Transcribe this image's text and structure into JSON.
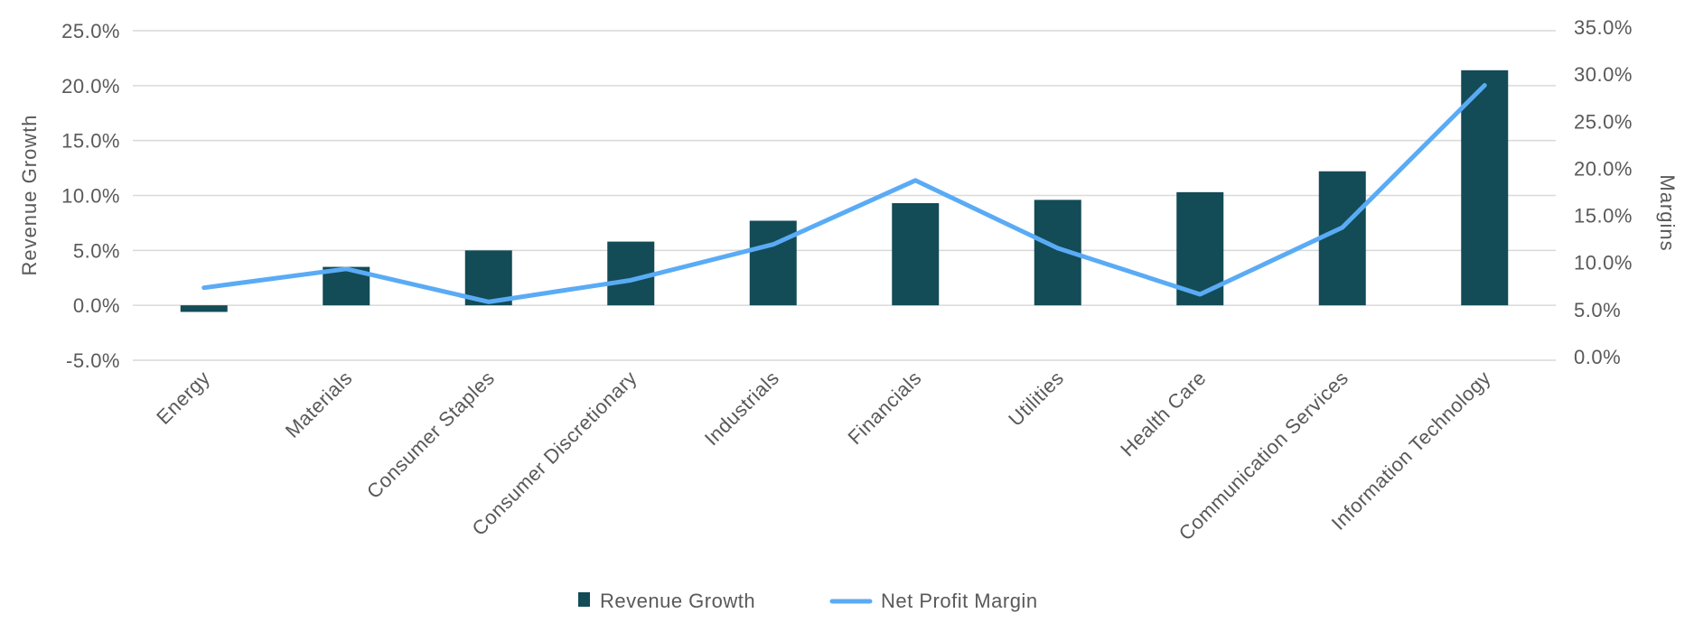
{
  "chart_data": {
    "type": "bar+line",
    "title": "",
    "categories": [
      "Energy",
      "Materials",
      "Consumer Staples",
      "Consumer Discretionary",
      "Industrials",
      "Financials",
      "Utilities",
      "Health Care",
      "Communication Services",
      "Information Technology"
    ],
    "series": [
      {
        "name": "Revenue Growth",
        "type": "bar",
        "axis": "left",
        "color": "#134b57",
        "values": [
          -0.6,
          3.5,
          5.0,
          5.8,
          7.7,
          9.3,
          9.6,
          10.3,
          12.2,
          21.4
        ]
      },
      {
        "name": "Net Profit Margin",
        "type": "line",
        "axis": "right",
        "color": "#5aabf5",
        "values": [
          7.7,
          9.7,
          6.2,
          8.5,
          12.3,
          19.1,
          11.9,
          7.0,
          14.1,
          29.2
        ]
      }
    ],
    "ylabel": "Revenue Growth",
    "y2label": "Margins",
    "ylim": [
      -5,
      25
    ],
    "y2lim": [
      0,
      35
    ],
    "yticks": [
      "-5.0%",
      "0.0%",
      "5.0%",
      "10.0%",
      "15.0%",
      "20.0%",
      "25.0%"
    ],
    "y2ticks": [
      "0.0%",
      "5.0%",
      "10.0%",
      "15.0%",
      "20.0%",
      "25.0%",
      "30.0%",
      "35.0%"
    ],
    "grid": true,
    "legend_position": "bottom"
  }
}
